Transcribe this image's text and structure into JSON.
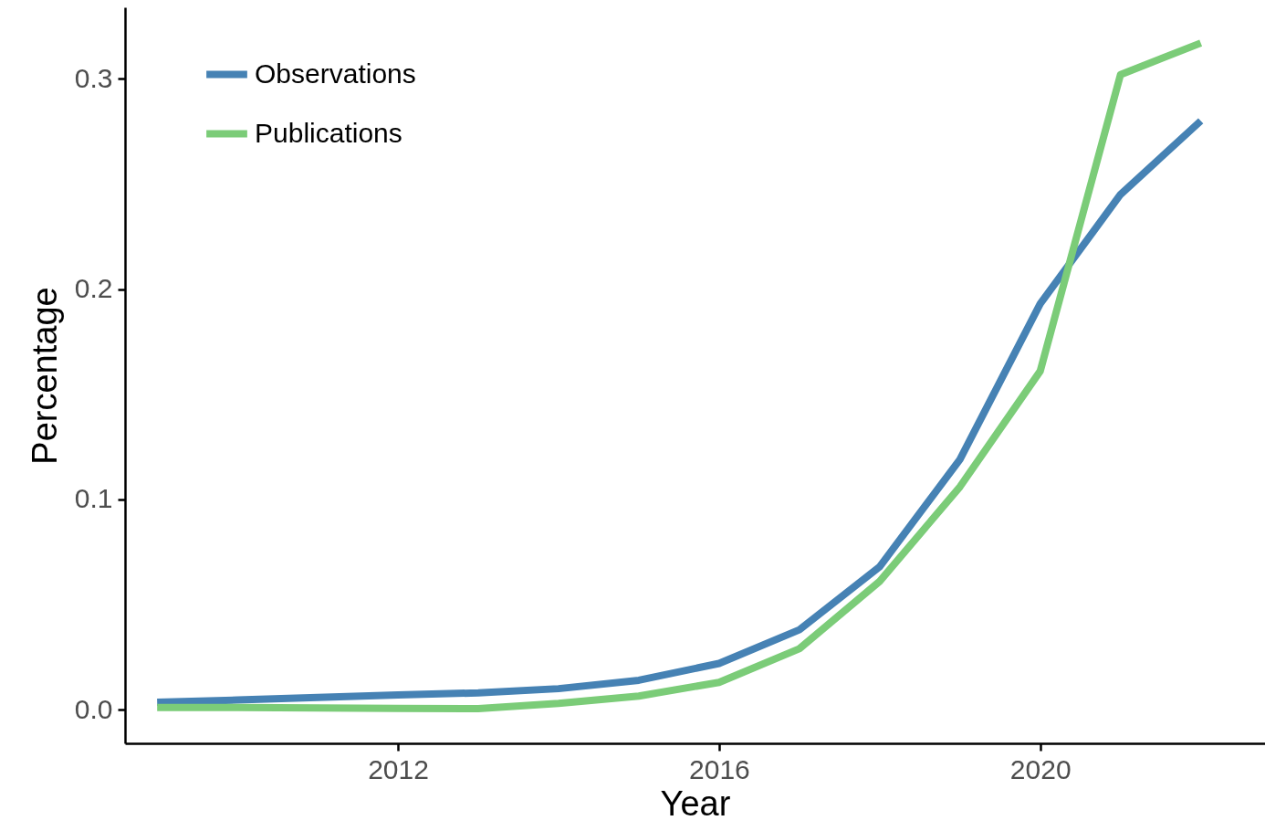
{
  "chart_data": {
    "type": "line",
    "xlabel": "Year",
    "ylabel": "Percentage",
    "x": [
      2009,
      2010,
      2011,
      2012,
      2013,
      2014,
      2015,
      2016,
      2017,
      2018,
      2019,
      2020,
      2021,
      2022
    ],
    "series": [
      {
        "name": "Observations",
        "color": "#4682b4",
        "values": [
          0.0035,
          0.0046,
          0.0058,
          0.007,
          0.008,
          0.01,
          0.014,
          0.022,
          0.038,
          0.068,
          0.119,
          0.193,
          0.245,
          0.28
        ]
      },
      {
        "name": "Publications",
        "color": "#7bcc78",
        "values": [
          0.001,
          0.001,
          0.0008,
          0.0006,
          0.0005,
          0.003,
          0.0065,
          0.013,
          0.029,
          0.061,
          0.106,
          0.161,
          0.302,
          0.317
        ]
      }
    ],
    "xlim": [
      2008.6,
      2022.8
    ],
    "xticks": [
      2012,
      2016,
      2020
    ],
    "ylim": [
      -0.016,
      0.334
    ],
    "yticks": [
      {
        "value": 0,
        "label": "0.0"
      },
      0.1,
      0.2,
      0.3
    ],
    "legend": "top left",
    "grid": false,
    "line_style": "solid",
    "marker": "none"
  }
}
